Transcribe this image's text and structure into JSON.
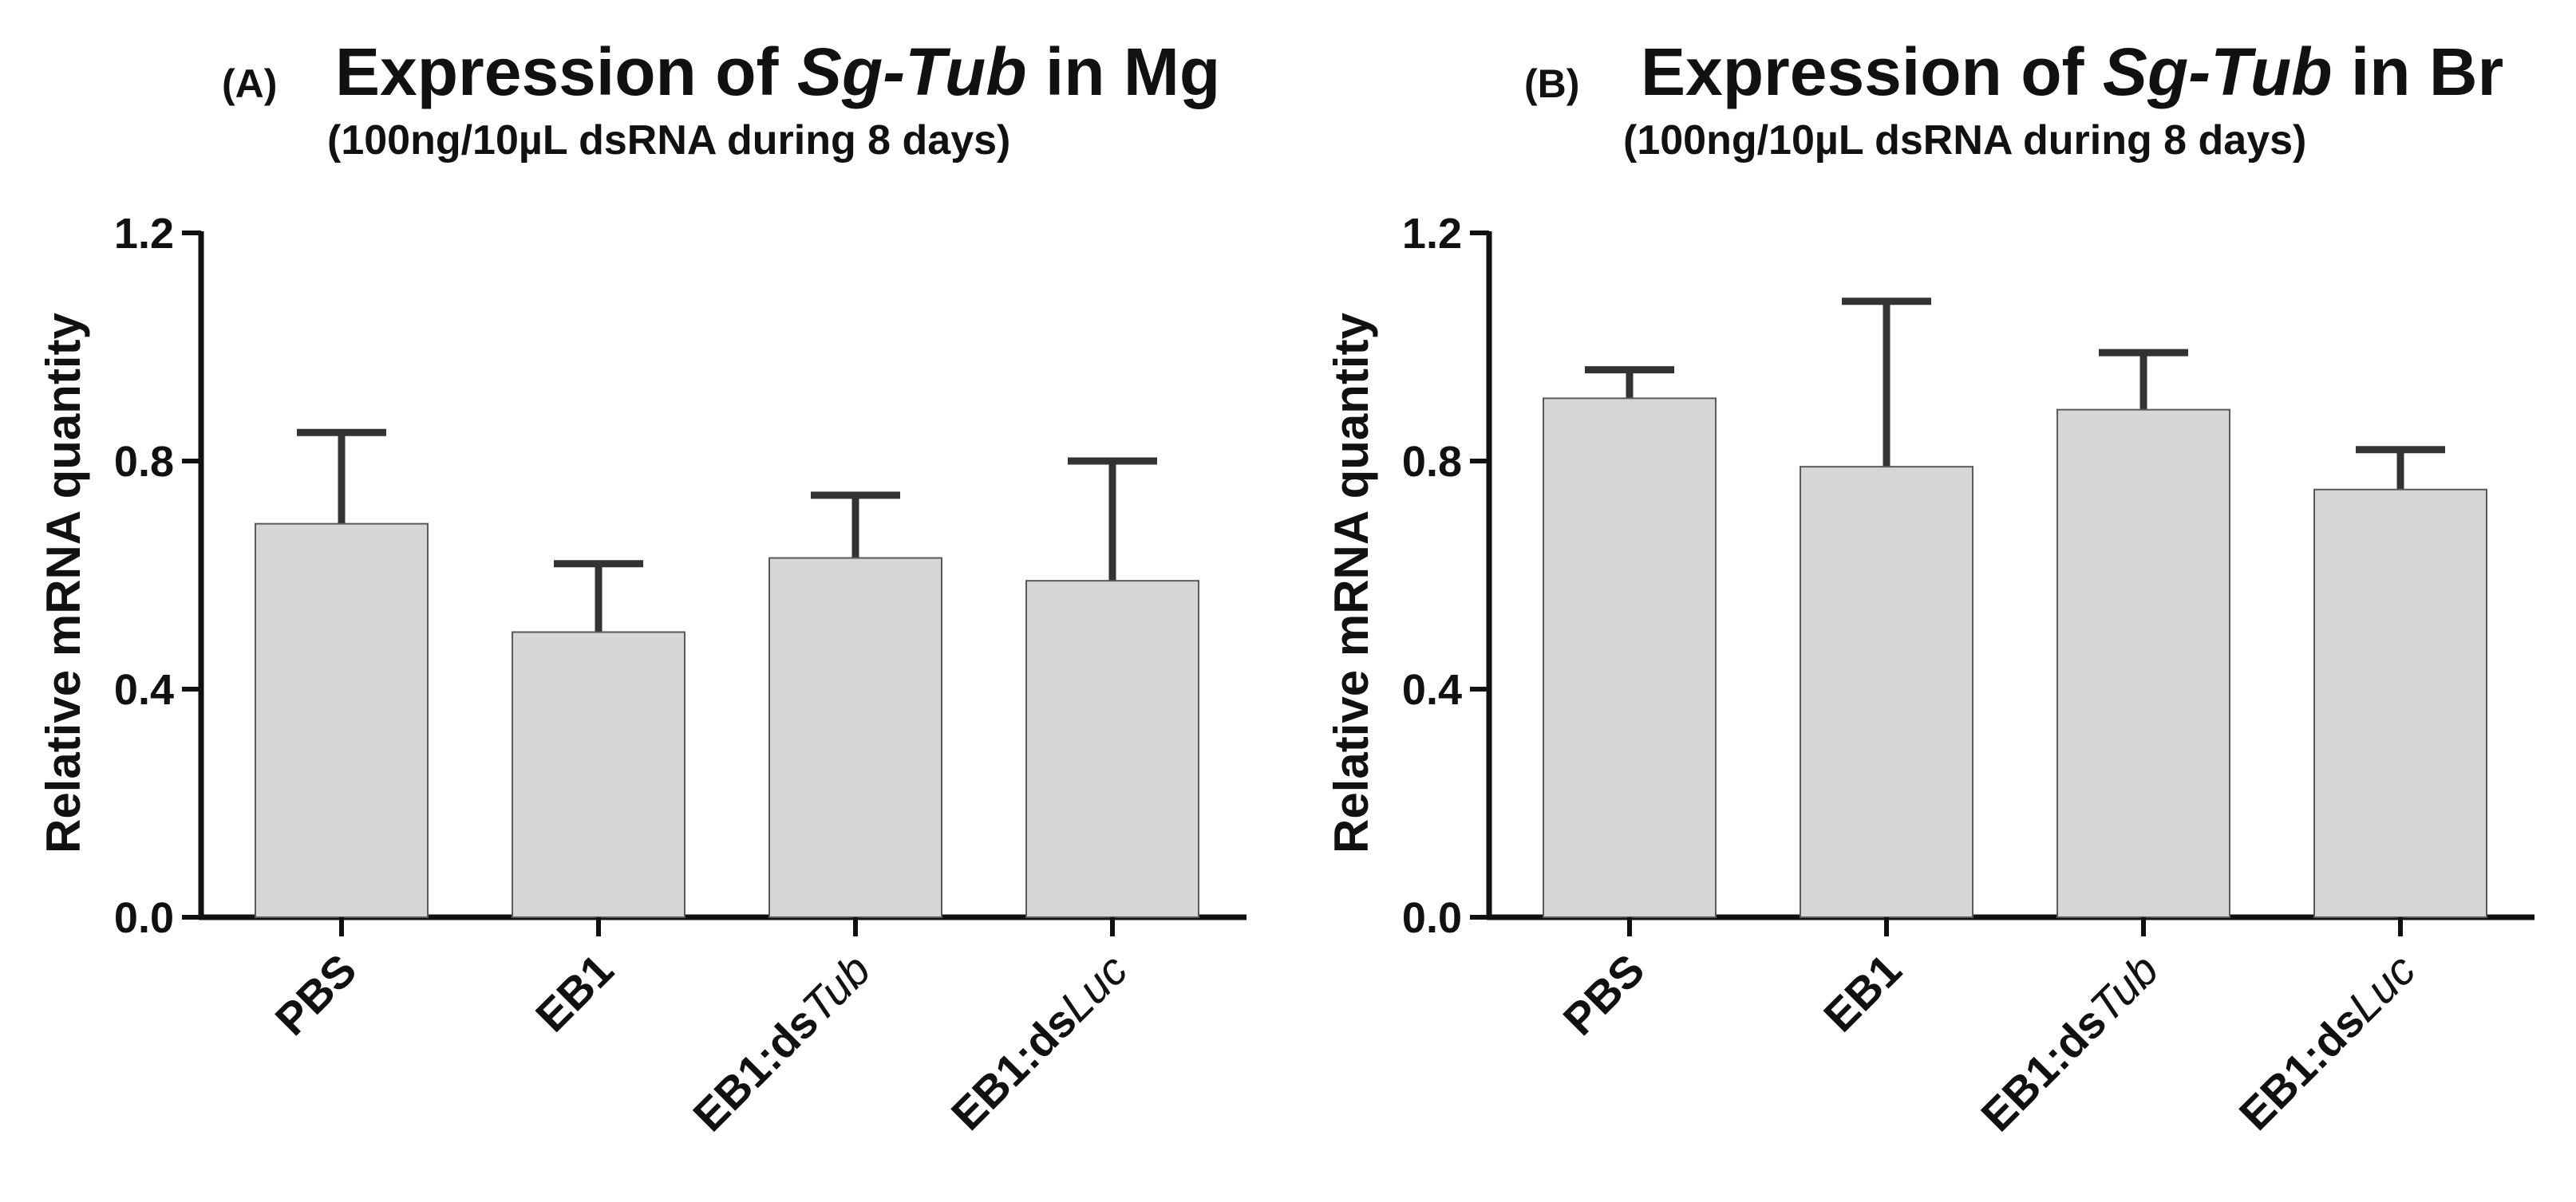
{
  "chart_data": [
    {
      "type": "bar",
      "panel_label": "(A)",
      "title": {
        "prefix": "Expression of ",
        "gene": "Sg-Tub",
        "suffix": " in Mg"
      },
      "subtitle": "(100ng/10µL dsRNA during 8 days)",
      "ylabel": "Relative mRNA quantity",
      "xlabel": "",
      "ylim": [
        0,
        1.2
      ],
      "yticks": [
        "0.0",
        "0.4",
        "0.8",
        "1.2"
      ],
      "ytick_values": [
        0,
        0.4,
        0.8,
        1.2
      ],
      "categories": [
        {
          "base": "PBS",
          "italic": ""
        },
        {
          "base": "EB1",
          "italic": ""
        },
        {
          "base": "EB1:ds",
          "italic": "Tub"
        },
        {
          "base": "EB1:ds",
          "italic": "Luc"
        }
      ],
      "values": [
        0.69,
        0.5,
        0.63,
        0.59
      ],
      "errors": [
        0.16,
        0.12,
        0.11,
        0.21
      ],
      "colors": {
        "bar": "#d6d6d6",
        "bar_edge": "#5a5a5a",
        "error": "#333333",
        "axis": "#111111"
      }
    },
    {
      "type": "bar",
      "panel_label": "(B)",
      "title": {
        "prefix": "Expression of ",
        "gene": "Sg-Tub",
        "suffix": " in Br"
      },
      "subtitle": "(100ng/10µL dsRNA during 8 days)",
      "ylabel": "Relative mRNA quantity",
      "xlabel": "",
      "ylim": [
        0,
        1.2
      ],
      "yticks": [
        "0.0",
        "0.4",
        "0.8",
        "1.2"
      ],
      "ytick_values": [
        0,
        0.4,
        0.8,
        1.2
      ],
      "categories": [
        {
          "base": "PBS",
          "italic": ""
        },
        {
          "base": "EB1",
          "italic": ""
        },
        {
          "base": "EB1:ds",
          "italic": "Tub"
        },
        {
          "base": "EB1:ds",
          "italic": "Luc"
        }
      ],
      "values": [
        0.91,
        0.79,
        0.89,
        0.75
      ],
      "errors": [
        0.05,
        0.29,
        0.1,
        0.07
      ],
      "colors": {
        "bar": "#d6d6d6",
        "bar_edge": "#5a5a5a",
        "error": "#333333",
        "axis": "#111111"
      }
    }
  ]
}
